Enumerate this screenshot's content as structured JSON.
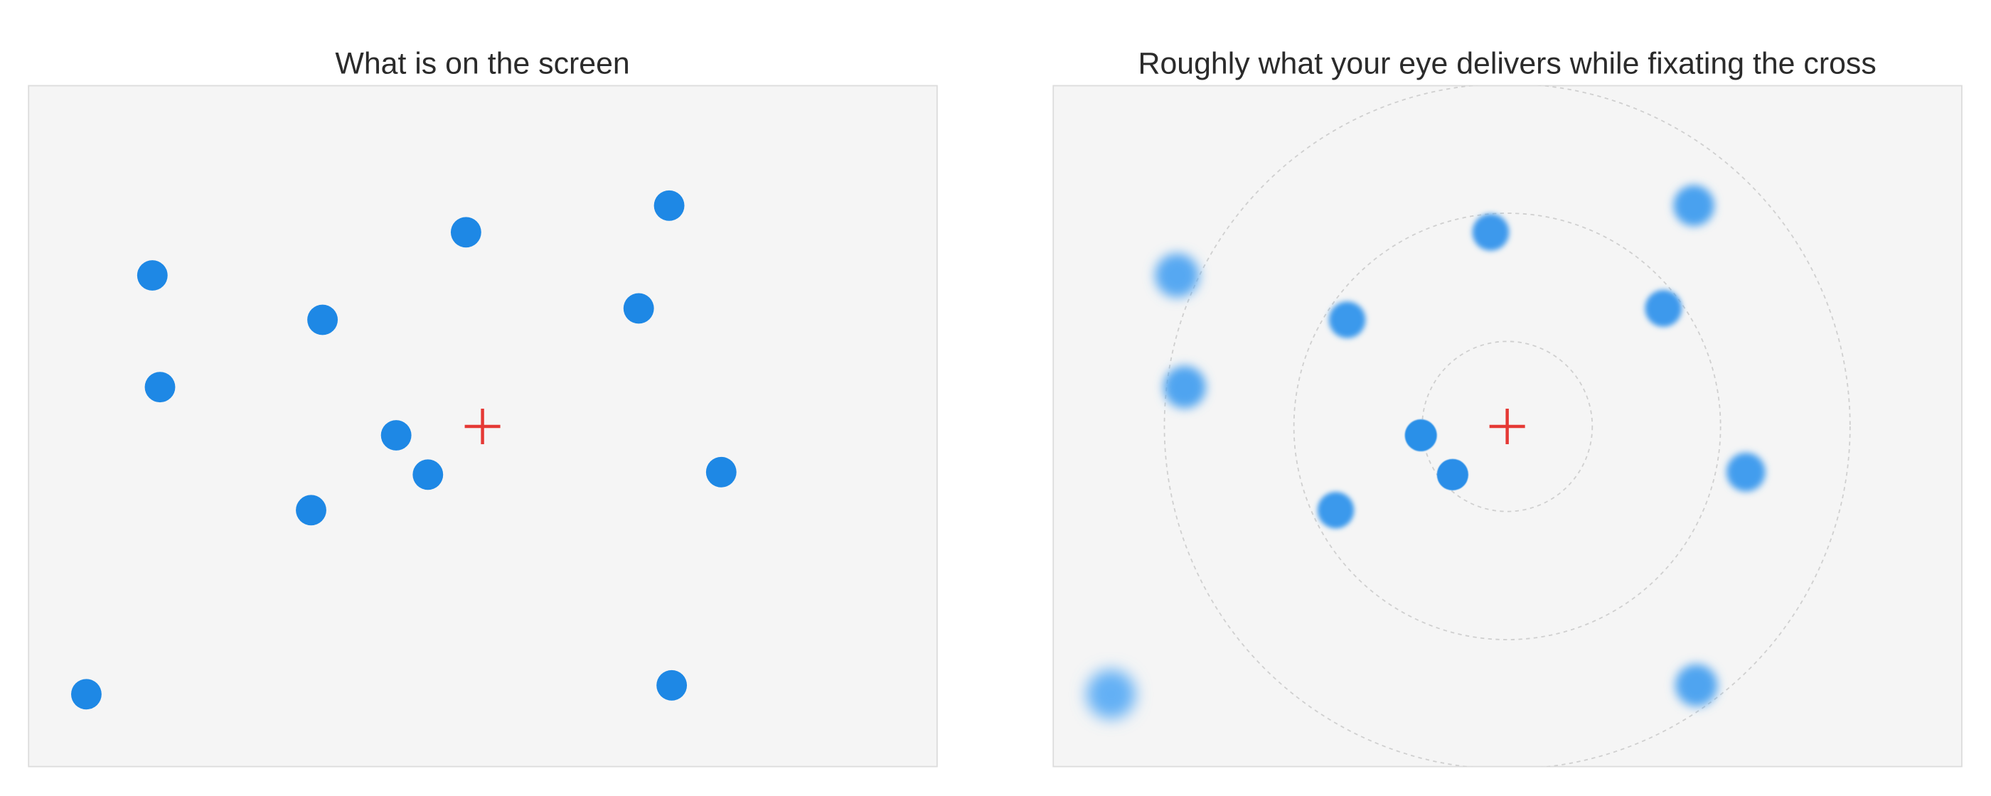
{
  "panels": [
    {
      "title": "What is on the screen"
    },
    {
      "title": "Roughly what your eye delivers while fixating the cross"
    }
  ]
}
